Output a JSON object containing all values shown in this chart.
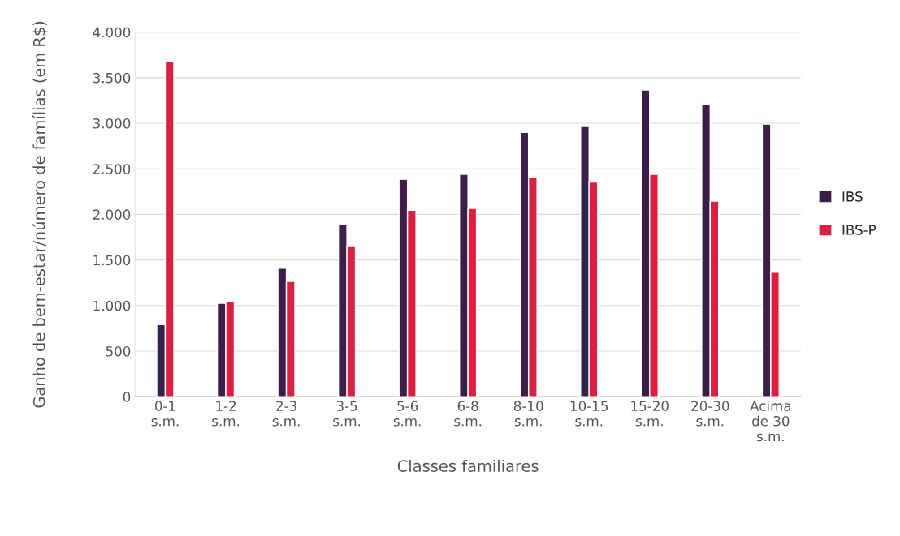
{
  "chart_data": {
    "type": "bar",
    "xlabel": "Classes familiares",
    "ylabel": "Ganho de bem-estar/número de famílias (em R$)",
    "categories": [
      "0-1\ns.m.",
      "1-2\ns.m.",
      "2-3\ns.m.",
      "3-5\ns.m.",
      "5-6\ns.m.",
      "6-8\ns.m.",
      "8-10\ns.m.",
      "10-15\ns.m.",
      "15-20\ns.m.",
      "20-30\ns.m.",
      "Acima\nde 30\ns.m."
    ],
    "series": [
      {
        "name": "IBS",
        "color": "#3b1f48",
        "values": [
          790,
          1025,
          1410,
          1895,
          2385,
          2440,
          2900,
          2965,
          3365,
          3210,
          2990
        ]
      },
      {
        "name": "IBS-P",
        "color": "#dc2041",
        "values": [
          3680,
          1040,
          1265,
          1655,
          2045,
          2065,
          2410,
          2355,
          2440,
          2145,
          1365
        ]
      }
    ],
    "ylim": [
      0,
      4000
    ],
    "yticks": [
      0,
      500,
      {
        "value": 1000,
        "label": "1.000"
      },
      {
        "value": 1500,
        "label": "1.500"
      },
      {
        "value": 2000,
        "label": "2.000"
      },
      {
        "value": 2500,
        "label": "2.500"
      },
      {
        "value": 3000,
        "label": "3.000"
      },
      {
        "value": 3500,
        "label": "3.500"
      },
      {
        "value": 4000,
        "label": "4.000"
      }
    ],
    "grid": "y",
    "legend": "right"
  }
}
